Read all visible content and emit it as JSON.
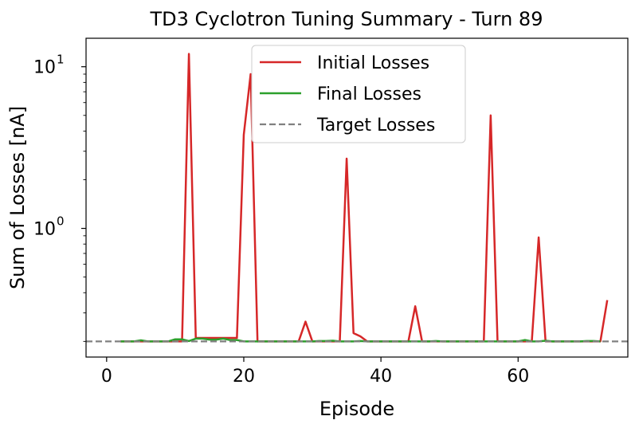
{
  "chart_data": {
    "type": "line",
    "title": "TD3 Cyclotron Tuning Summary - Turn 89",
    "xlabel": "Episode",
    "ylabel": "Sum of Losses [nA]",
    "yscale": "log",
    "xlim": [
      -3,
      76
    ],
    "ylim": [
      0.16,
      15
    ],
    "xticks": [
      0,
      20,
      40,
      60
    ],
    "yticks": [
      {
        "value": 1,
        "base": "10",
        "exp": "0"
      },
      {
        "value": 10,
        "base": "10",
        "exp": "1"
      }
    ],
    "grid": false,
    "legend_position": "top-center",
    "series": [
      {
        "name": "Initial Losses",
        "color": "#d62728",
        "dash": "solid",
        "points": [
          [
            2,
            0.2
          ],
          [
            3,
            0.2
          ],
          [
            4,
            0.2
          ],
          [
            5,
            0.2
          ],
          [
            6,
            0.2
          ],
          [
            7,
            0.2
          ],
          [
            8,
            0.2
          ],
          [
            9,
            0.2
          ],
          [
            10,
            0.2
          ],
          [
            11,
            0.2
          ],
          [
            12,
            12.0
          ],
          [
            13,
            0.21
          ],
          [
            14,
            0.21
          ],
          [
            15,
            0.21
          ],
          [
            16,
            0.21
          ],
          [
            17,
            0.21
          ],
          [
            18,
            0.21
          ],
          [
            19,
            0.21
          ],
          [
            20,
            3.8
          ],
          [
            21,
            9.0
          ],
          [
            22,
            0.2
          ],
          [
            23,
            0.2
          ],
          [
            24,
            0.2
          ],
          [
            25,
            0.2
          ],
          [
            26,
            0.2
          ],
          [
            27,
            0.2
          ],
          [
            28,
            0.2
          ],
          [
            29,
            0.265
          ],
          [
            30,
            0.2
          ],
          [
            31,
            0.2
          ],
          [
            32,
            0.2
          ],
          [
            33,
            0.2
          ],
          [
            34,
            0.2
          ],
          [
            35,
            2.7
          ],
          [
            36,
            0.225
          ],
          [
            37,
            0.215
          ],
          [
            38,
            0.2
          ],
          [
            39,
            0.2
          ],
          [
            40,
            0.2
          ],
          [
            41,
            0.2
          ],
          [
            42,
            0.2
          ],
          [
            43,
            0.2
          ],
          [
            44,
            0.2
          ],
          [
            45,
            0.33
          ],
          [
            46,
            0.2
          ],
          [
            47,
            0.2
          ],
          [
            48,
            0.2
          ],
          [
            49,
            0.2
          ],
          [
            50,
            0.2
          ],
          [
            51,
            0.2
          ],
          [
            52,
            0.2
          ],
          [
            53,
            0.2
          ],
          [
            54,
            0.2
          ],
          [
            55,
            0.2
          ],
          [
            56,
            5.0
          ],
          [
            57,
            0.2
          ],
          [
            58,
            0.2
          ],
          [
            59,
            0.2
          ],
          [
            60,
            0.2
          ],
          [
            61,
            0.2
          ],
          [
            62,
            0.2
          ],
          [
            63,
            0.88
          ],
          [
            64,
            0.2
          ],
          [
            65,
            0.2
          ],
          [
            66,
            0.2
          ],
          [
            67,
            0.2
          ],
          [
            68,
            0.2
          ],
          [
            69,
            0.2
          ],
          [
            70,
            0.2
          ],
          [
            71,
            0.2
          ],
          [
            72,
            0.2
          ],
          [
            73,
            0.36
          ]
        ]
      },
      {
        "name": "Final Losses",
        "color": "#2ca02c",
        "dash": "solid",
        "points": [
          [
            2,
            0.2
          ],
          [
            3,
            0.2
          ],
          [
            4,
            0.2
          ],
          [
            5,
            0.203
          ],
          [
            6,
            0.2
          ],
          [
            7,
            0.2
          ],
          [
            8,
            0.2
          ],
          [
            9,
            0.2
          ],
          [
            10,
            0.206
          ],
          [
            11,
            0.206
          ],
          [
            12,
            0.201
          ],
          [
            13,
            0.208
          ],
          [
            14,
            0.208
          ],
          [
            15,
            0.205
          ],
          [
            16,
            0.205
          ],
          [
            17,
            0.208
          ],
          [
            18,
            0.204
          ],
          [
            19,
            0.204
          ],
          [
            20,
            0.2
          ],
          [
            21,
            0.2
          ],
          [
            22,
            0.2
          ],
          [
            23,
            0.2
          ],
          [
            24,
            0.2
          ],
          [
            25,
            0.2
          ],
          [
            26,
            0.2
          ],
          [
            27,
            0.2
          ],
          [
            28,
            0.2
          ],
          [
            29,
            0.2
          ],
          [
            30,
            0.2
          ],
          [
            31,
            0.201
          ],
          [
            32,
            0.201
          ],
          [
            33,
            0.202
          ],
          [
            34,
            0.2
          ],
          [
            35,
            0.2
          ],
          [
            36,
            0.2
          ],
          [
            37,
            0.201
          ],
          [
            38,
            0.2
          ],
          [
            39,
            0.2
          ],
          [
            40,
            0.2
          ],
          [
            41,
            0.2
          ],
          [
            42,
            0.2
          ],
          [
            43,
            0.2
          ],
          [
            44,
            0.2
          ],
          [
            45,
            0.2
          ],
          [
            46,
            0.2
          ],
          [
            47,
            0.2
          ],
          [
            48,
            0.201
          ],
          [
            49,
            0.2
          ],
          [
            50,
            0.2
          ],
          [
            51,
            0.2
          ],
          [
            52,
            0.2
          ],
          [
            53,
            0.2
          ],
          [
            54,
            0.2
          ],
          [
            55,
            0.2
          ],
          [
            56,
            0.2
          ],
          [
            57,
            0.2
          ],
          [
            58,
            0.2
          ],
          [
            59,
            0.2
          ],
          [
            60,
            0.2
          ],
          [
            61,
            0.204
          ],
          [
            62,
            0.2
          ],
          [
            63,
            0.2
          ],
          [
            64,
            0.202
          ],
          [
            65,
            0.2
          ],
          [
            66,
            0.2
          ],
          [
            67,
            0.2
          ],
          [
            68,
            0.2
          ],
          [
            69,
            0.2
          ],
          [
            70,
            0.201
          ],
          [
            71,
            0.201
          ],
          [
            72,
            0.2
          ]
        ]
      },
      {
        "name": "Target Losses",
        "color": "#808080",
        "dash": "dashed",
        "hline": 0.2
      }
    ]
  }
}
